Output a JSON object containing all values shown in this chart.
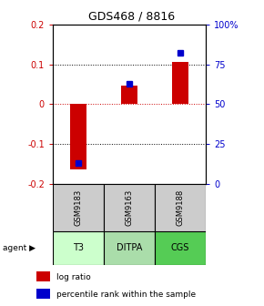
{
  "title": "GDS468 / 8816",
  "samples": [
    "GSM9183",
    "GSM9163",
    "GSM9188"
  ],
  "agents": [
    "T3",
    "DITPA",
    "CGS"
  ],
  "log_ratios": [
    -0.165,
    0.047,
    0.107
  ],
  "percentile_ranks": [
    13,
    63,
    82
  ],
  "ylim_left": [
    -0.2,
    0.2
  ],
  "ylim_right": [
    0,
    100
  ],
  "yticks_left": [
    -0.2,
    -0.1,
    0.0,
    0.1,
    0.2
  ],
  "yticks_right": [
    0,
    25,
    50,
    75,
    100
  ],
  "ytick_labels_left": [
    "-0.2",
    "-0.1",
    "0",
    "0.1",
    "0.2"
  ],
  "ytick_labels_right": [
    "0",
    "25",
    "50",
    "75",
    "100%"
  ],
  "bar_color": "#cc0000",
  "dot_color": "#0000cc",
  "agent_colors": [
    "#ccffcc",
    "#aaddaa",
    "#55cc55"
  ],
  "sample_bg_color": "#cccccc",
  "title_fontsize": 9,
  "legend_label_log": "log ratio",
  "legend_label_pct": "percentile rank within the sample"
}
